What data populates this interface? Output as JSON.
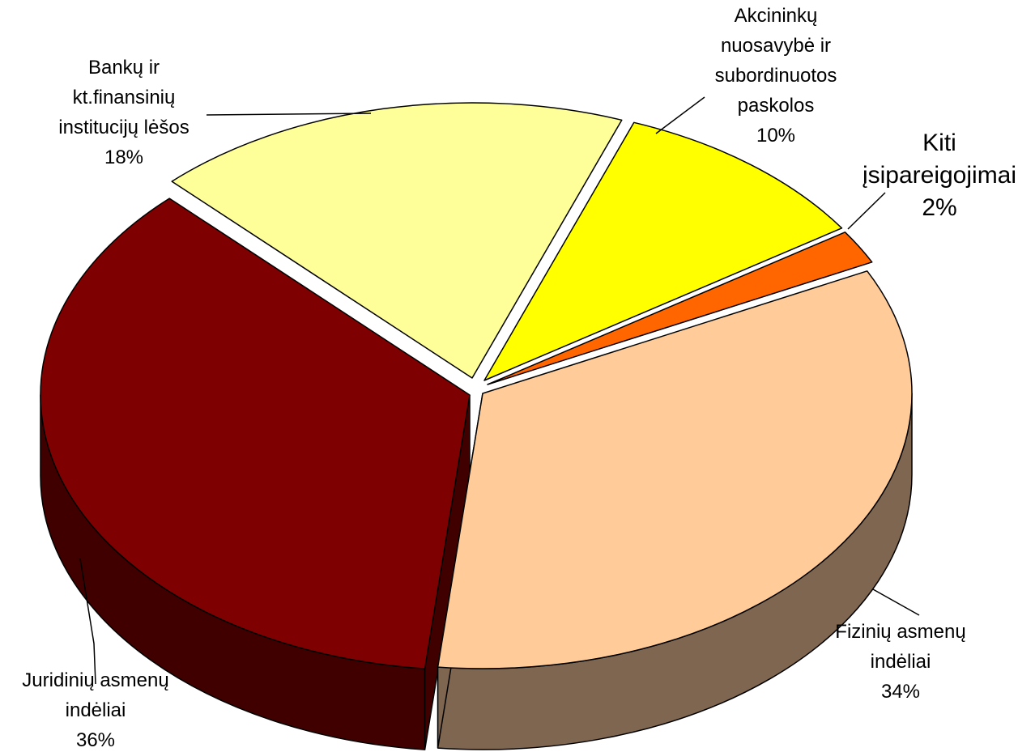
{
  "chart_data": {
    "type": "pie",
    "style": "3d-exploded",
    "title": "",
    "slices": [
      {
        "label_lines": [
          "Juridinių asmenų",
          "indėliai"
        ],
        "percent_label": "36%",
        "value": 36,
        "color": "#7f0000",
        "side_color": "#400000",
        "icon": "pie-slice"
      },
      {
        "label_lines": [
          "Bankų ir",
          "kt.finansinių",
          "institucijų lėšos"
        ],
        "percent_label": "18%",
        "value": 18,
        "color": "#ffff99",
        "side_color": "#7f7f4c",
        "icon": "pie-slice"
      },
      {
        "label_lines": [
          "Akcininkų",
          "nuosavybė ir",
          "subordinuotos",
          "paskolos"
        ],
        "percent_label": "10%",
        "value": 10,
        "color": "#ffff00",
        "side_color": "#7f7f00",
        "icon": "pie-slice"
      },
      {
        "label_lines": [
          "Kiti",
          "įsipareigojimai"
        ],
        "percent_label": "2%",
        "value": 2,
        "color": "#ff6600",
        "side_color": "#993300",
        "icon": "pie-slice"
      },
      {
        "label_lines": [
          "Fizinių asmenų",
          "indėliai"
        ],
        "percent_label": "34%",
        "value": 34,
        "color": "#ffcc99",
        "side_color": "#7f6650",
        "icon": "pie-slice"
      }
    ]
  }
}
